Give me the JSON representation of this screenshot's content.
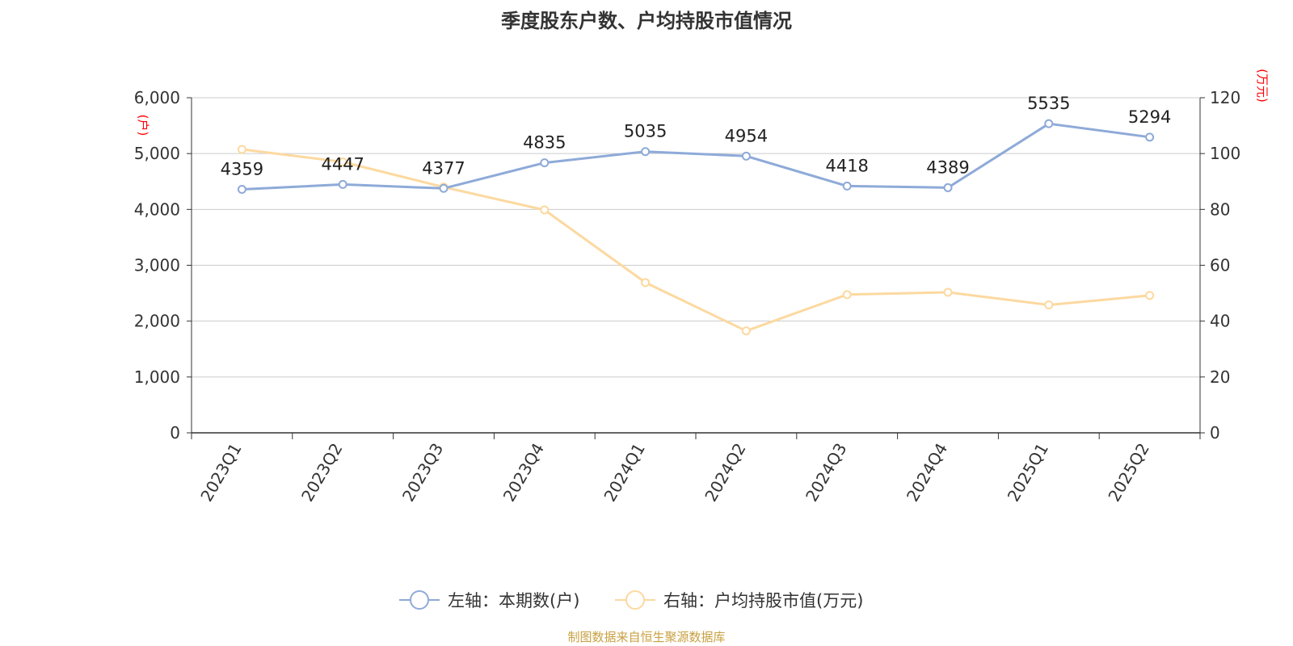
{
  "chart_data": {
    "type": "line",
    "title": "季度股东户数、户均持股市值情况",
    "categories": [
      "2023Q1",
      "2023Q2",
      "2023Q3",
      "2023Q4",
      "2024Q1",
      "2024Q2",
      "2024Q3",
      "2024Q4",
      "2025Q1",
      "2025Q2"
    ],
    "series": [
      {
        "name": "左轴：本期数(户)",
        "axis": "left",
        "color": "#8eaad8",
        "values": [
          4359,
          4447,
          4377,
          4835,
          5035,
          4954,
          4418,
          4389,
          5535,
          5294
        ],
        "show_labels": true
      },
      {
        "name": "右轴：户均持股市值(万元)",
        "axis": "right",
        "color": "#fcd9a0",
        "values": [
          101.5,
          97,
          88,
          79.8,
          53.8,
          36.5,
          49.5,
          50.3,
          45.8,
          49.2
        ],
        "show_labels": false
      }
    ],
    "y_left": {
      "unit": "(户)",
      "range": [
        0,
        6000
      ],
      "ticks": [
        "0",
        "1,000",
        "2,000",
        "3,000",
        "4,000",
        "5,000",
        "6,000"
      ]
    },
    "y_right": {
      "unit": "(万元)",
      "range": [
        0,
        120
      ],
      "ticks": [
        "0",
        "20",
        "40",
        "60",
        "80",
        "100",
        "120"
      ]
    },
    "grid": true,
    "legend_position": "bottom-center",
    "source": "制图数据来自恒生聚源数据库",
    "unit_color": "#ff0000"
  }
}
